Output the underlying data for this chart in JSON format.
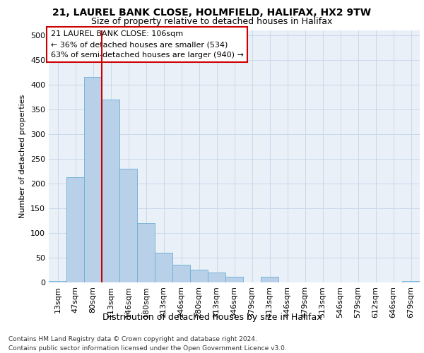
{
  "title1": "21, LAUREL BANK CLOSE, HOLMFIELD, HALIFAX, HX2 9TW",
  "title2": "Size of property relative to detached houses in Halifax",
  "xlabel": "Distribution of detached houses by size in Halifax",
  "ylabel": "Number of detached properties",
  "categories": [
    "13sqm",
    "47sqm",
    "80sqm",
    "113sqm",
    "146sqm",
    "180sqm",
    "213sqm",
    "246sqm",
    "280sqm",
    "313sqm",
    "346sqm",
    "379sqm",
    "413sqm",
    "446sqm",
    "479sqm",
    "513sqm",
    "546sqm",
    "579sqm",
    "612sqm",
    "646sqm",
    "679sqm"
  ],
  "values": [
    3,
    213,
    415,
    370,
    230,
    120,
    60,
    35,
    25,
    20,
    12,
    0,
    12,
    0,
    0,
    0,
    0,
    0,
    0,
    0,
    3
  ],
  "bar_color": "#b8d0e8",
  "bar_edgecolor": "#6baed6",
  "grid_color": "#c8d8ea",
  "background_color": "#eaf0f8",
  "vline_x": 2.5,
  "vline_color": "#cc0000",
  "annotation_text": "21 LAUREL BANK CLOSE: 106sqm\n← 36% of detached houses are smaller (534)\n63% of semi-detached houses are larger (940) →",
  "annotation_box_color": "#cc0000",
  "footer1": "Contains HM Land Registry data © Crown copyright and database right 2024.",
  "footer2": "Contains public sector information licensed under the Open Government Licence v3.0.",
  "ylim": [
    0,
    510
  ],
  "yticks": [
    0,
    50,
    100,
    150,
    200,
    250,
    300,
    350,
    400,
    450,
    500
  ],
  "title1_fontsize": 10,
  "title2_fontsize": 9,
  "xlabel_fontsize": 9,
  "ylabel_fontsize": 8,
  "tick_fontsize": 8,
  "annotation_fontsize": 8,
  "footer_fontsize": 6.5
}
